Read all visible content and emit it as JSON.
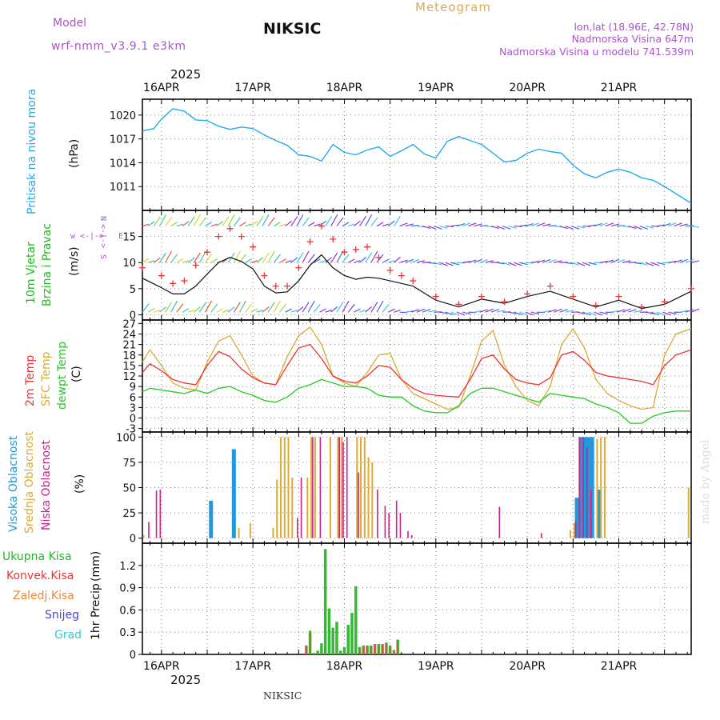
{
  "header": {
    "model_label": "Model",
    "model_name": "wrf-nmm_v3.9.1  e3km",
    "station": "NIKSIC",
    "title": "Meteogram",
    "coords": "lon,lat (18.96E, 42.78N)",
    "elevation": "Nadmorska Visina 647m",
    "model_elevation": "Nadmorska Visina u modelu 741.539m",
    "footer_station": "NIKSIC",
    "watermark": "made by Angel",
    "year": "2025"
  },
  "time_axis": {
    "start_hour": -5,
    "end_hour": 139,
    "labels": [
      "16APR",
      "17APR",
      "18APR",
      "19APR",
      "20APR",
      "21APR"
    ],
    "label_hours": [
      0,
      24,
      48,
      72,
      96,
      120
    ],
    "grid_hours": [
      0,
      12,
      24,
      36,
      48,
      60,
      72,
      84,
      96,
      108,
      120,
      132
    ]
  },
  "colors": {
    "pressure": "#22aaee",
    "temp2m": "#ee3333",
    "sfc": "#ddaa33",
    "dewpt": "#22cc22",
    "high_cloud": "#2299dd",
    "mid_cloud": "#ddaa33",
    "low_cloud": "#cc2288",
    "total_precip": "#33bb33",
    "conv_precip": "#ee4444",
    "frozen_precip": "#ee8833",
    "snow": "#4444dd",
    "hail": "#33cccc",
    "purple_label": "#aa55cc",
    "orange_label": "#ddaa55"
  },
  "chart_data": [
    {
      "id": "pressure",
      "type": "line",
      "ylabel": "Pritisak na nivou mora",
      "unit": "(hPa)",
      "ylim": [
        1008,
        1022
      ],
      "yticks": [
        1011,
        1014,
        1017,
        1020
      ],
      "x_hours": [
        -5,
        -2,
        0,
        3,
        6,
        9,
        12,
        15,
        18,
        21,
        24,
        27,
        30,
        33,
        36,
        39,
        42,
        45,
        48,
        51,
        54,
        57,
        60,
        63,
        66,
        69,
        72,
        75,
        78,
        81,
        84,
        87,
        90,
        93,
        96,
        99,
        102,
        105,
        108,
        111,
        114,
        117,
        120,
        123,
        126,
        129,
        132,
        135,
        139
      ],
      "series": [
        {
          "name": "Pressure",
          "values": [
            1018.0,
            1018.3,
            1019.5,
            1020.8,
            1020.5,
            1019.4,
            1019.3,
            1018.6,
            1018.2,
            1018.5,
            1018.3,
            1017.5,
            1016.8,
            1016.2,
            1015.0,
            1014.8,
            1014.2,
            1016.3,
            1015.3,
            1015.0,
            1015.6,
            1016.0,
            1014.8,
            1015.5,
            1016.3,
            1015.1,
            1014.6,
            1016.7,
            1017.3,
            1016.8,
            1016.3,
            1015.2,
            1014.1,
            1014.3,
            1015.2,
            1015.7,
            1015.4,
            1015.2,
            1013.7,
            1012.6,
            1012.1,
            1012.8,
            1013.2,
            1012.8,
            1012.1,
            1011.8,
            1011.0,
            1010.1,
            1008.9
          ]
        }
      ]
    },
    {
      "id": "wind",
      "type": "line",
      "ylabel": "10m Vjetar",
      "ylabel2": "Brzina i Pravac",
      "unit": "(m/s)",
      "ylim": [
        -1,
        20
      ],
      "yticks": [
        0,
        5,
        10,
        15
      ],
      "x_hours": [
        -5,
        0,
        3,
        6,
        9,
        12,
        15,
        18,
        21,
        24,
        27,
        30,
        33,
        36,
        39,
        42,
        45,
        48,
        51,
        54,
        57,
        60,
        63,
        66,
        72,
        78,
        84,
        90,
        96,
        102,
        108,
        114,
        120,
        126,
        132,
        139
      ],
      "series": [
        {
          "name": "Wind speed",
          "values": [
            7.0,
            5.2,
            4.0,
            4.0,
            5.5,
            7.8,
            10.0,
            11.0,
            10.2,
            8.8,
            5.5,
            4.2,
            4.4,
            6.5,
            9.5,
            11.5,
            9.0,
            7.5,
            6.8,
            7.2,
            7.0,
            6.5,
            6.0,
            5.5,
            2.8,
            1.5,
            3.0,
            2.2,
            3.5,
            4.5,
            3.0,
            1.5,
            2.8,
            1.2,
            2.0,
            4.5
          ]
        },
        {
          "name": "Wind gust",
          "values": [
            9.0,
            7.5,
            6.0,
            6.5,
            9.5,
            12.0,
            15.0,
            16.5,
            15.0,
            13.0,
            7.5,
            5.5,
            5.5,
            9.0,
            14.0,
            17.0,
            14.5,
            12.0,
            12.5,
            13.0,
            11.0,
            8.5,
            7.5,
            6.5,
            3.5,
            2.0,
            3.5,
            2.5,
            4.0,
            5.5,
            3.5,
            1.8,
            3.5,
            1.5,
            2.5,
            5.0
          ]
        }
      ]
    },
    {
      "id": "temperature",
      "type": "line",
      "ylabel": "2m Temp",
      "ylabel2": "SFC Temp",
      "ylabel3": "dewpt Temp",
      "unit": "(C)",
      "ylim": [
        -4,
        28
      ],
      "yticks": [
        -3,
        0,
        3,
        6,
        9,
        12,
        15,
        18,
        21,
        24,
        27
      ],
      "x_hours": [
        -5,
        -3,
        0,
        3,
        6,
        9,
        12,
        15,
        18,
        21,
        24,
        27,
        30,
        33,
        36,
        39,
        42,
        45,
        48,
        51,
        54,
        57,
        60,
        63,
        66,
        69,
        72,
        75,
        78,
        81,
        84,
        87,
        90,
        93,
        96,
        99,
        102,
        105,
        108,
        111,
        114,
        117,
        120,
        123,
        126,
        129,
        132,
        135,
        139
      ],
      "series": [
        {
          "name": "2m Temp",
          "values": [
            13.0,
            15.5,
            13.5,
            11.0,
            10.0,
            9.5,
            15.0,
            19.0,
            17.5,
            14.0,
            11.5,
            10.0,
            9.5,
            15.0,
            20.0,
            21.0,
            17.0,
            12.0,
            10.5,
            10.0,
            12.0,
            15.0,
            14.5,
            11.0,
            8.5,
            7.0,
            6.5,
            6.2,
            6.0,
            11.0,
            17.0,
            18.0,
            14.0,
            11.0,
            10.0,
            9.5,
            11.5,
            18.0,
            19.0,
            16.5,
            13.0,
            12.0,
            11.5,
            11.0,
            10.5,
            9.5,
            15.0,
            18.0,
            19.5
          ]
        },
        {
          "name": "SFC Temp",
          "values": [
            16.0,
            19.5,
            15.0,
            10.0,
            8.5,
            8.0,
            16.0,
            22.0,
            23.5,
            18.0,
            12.0,
            10.0,
            9.5,
            17.5,
            23.5,
            26.0,
            21.0,
            12.0,
            10.0,
            9.0,
            13.0,
            18.0,
            18.5,
            11.0,
            7.0,
            5.5,
            4.0,
            2.5,
            3.0,
            12.0,
            22.0,
            25.0,
            15.0,
            9.0,
            5.0,
            3.5,
            9.0,
            21.0,
            25.5,
            20.0,
            11.0,
            7.0,
            5.0,
            3.5,
            2.5,
            3.0,
            18.0,
            24.0,
            25.5
          ]
        },
        {
          "name": "dewpt Temp",
          "values": [
            7.5,
            8.5,
            8.0,
            7.5,
            7.0,
            8.0,
            7.0,
            8.5,
            9.0,
            7.5,
            6.5,
            5.0,
            4.5,
            6.0,
            8.5,
            9.5,
            11.0,
            10.0,
            9.0,
            9.0,
            8.5,
            6.5,
            6.0,
            6.0,
            3.5,
            2.0,
            1.5,
            1.5,
            3.5,
            7.0,
            8.5,
            8.5,
            7.5,
            6.5,
            5.5,
            4.5,
            7.0,
            6.5,
            6.0,
            5.5,
            4.0,
            3.0,
            1.5,
            -1.5,
            -1.5,
            0.5,
            1.5,
            2.0,
            2.0
          ]
        }
      ]
    },
    {
      "id": "clouds",
      "type": "bar",
      "ylabel": "Visoka Oblacnost",
      "ylabel2": "Srednja Oblacnost",
      "ylabel3": "Niska Oblacnost",
      "unit": "(%)",
      "ylim": [
        -5,
        105
      ],
      "yticks": [
        0,
        25,
        50,
        75,
        100
      ],
      "series": [
        {
          "name": "Visoka Oblacnost",
          "x_hours": [
            13,
            19,
            109,
            110,
            111,
            112,
            113,
            115
          ],
          "values": [
            37,
            88,
            40,
            100,
            100,
            100,
            100,
            48
          ]
        },
        {
          "name": "Srednja Oblacnost",
          "x_hours": [
            -5,
            20,
            23,
            29,
            30,
            31,
            32,
            33,
            34,
            38,
            39,
            40,
            44,
            46,
            47,
            51,
            52,
            53,
            54,
            55,
            107,
            108,
            114,
            115,
            116,
            138
          ],
          "values": [
            3,
            10,
            15,
            10,
            58,
            100,
            100,
            100,
            60,
            60,
            100,
            100,
            100,
            100,
            100,
            100,
            100,
            100,
            80,
            75,
            8,
            15,
            98,
            100,
            100,
            50
          ]
        },
        {
          "name": "Niska Oblacnost",
          "x_hours": [
            -3,
            -1,
            0,
            36,
            37,
            40,
            42,
            47,
            48,
            49,
            52,
            57,
            59,
            60,
            62,
            63,
            65,
            66,
            89,
            100,
            109,
            110,
            111,
            112,
            113
          ],
          "values": [
            16,
            47,
            48,
            20,
            60,
            100,
            100,
            100,
            95,
            100,
            65,
            48,
            32,
            25,
            37,
            25,
            7,
            3,
            31,
            5,
            17,
            100,
            100,
            90,
            48
          ]
        }
      ]
    },
    {
      "id": "precip",
      "type": "bar",
      "ylabel": "1hr Precip",
      "unit": "(mm)",
      "ylim": [
        0,
        1.5
      ],
      "yticks": [
        0,
        0.3,
        0.6,
        0.9,
        1.2
      ],
      "legend": [
        "Ukupna Kisa",
        "Konvek.Kisa",
        "Zaledj.Kisa",
        "Snijeg",
        "Grad"
      ],
      "series": [
        {
          "name": "Ukupna Kisa",
          "x_hours": [
            38,
            39,
            40,
            41,
            42,
            43,
            44,
            45,
            46,
            47,
            48,
            49,
            50,
            51,
            52,
            53,
            54,
            55,
            56,
            57,
            58,
            59,
            60,
            61,
            62
          ],
          "values": [
            0.12,
            0.32,
            0.02,
            0.05,
            0.15,
            1.42,
            0.62,
            0.36,
            0.44,
            0.05,
            0.1,
            0.4,
            0.56,
            0.92,
            0.1,
            0.12,
            0.12,
            0.12,
            0.14,
            0.14,
            0.14,
            0.16,
            0.12,
            0.06,
            0.2
          ]
        },
        {
          "name": "Konvek.Kisa",
          "x_hours": [
            38,
            39,
            52,
            53,
            54,
            55,
            56,
            57,
            58,
            59,
            60,
            61,
            62
          ],
          "values": [
            0.11,
            0.28,
            0.08,
            0.1,
            0.11,
            0.11,
            0.13,
            0.12,
            0.13,
            0.14,
            0.11,
            0.05,
            0.18
          ]
        }
      ]
    }
  ]
}
